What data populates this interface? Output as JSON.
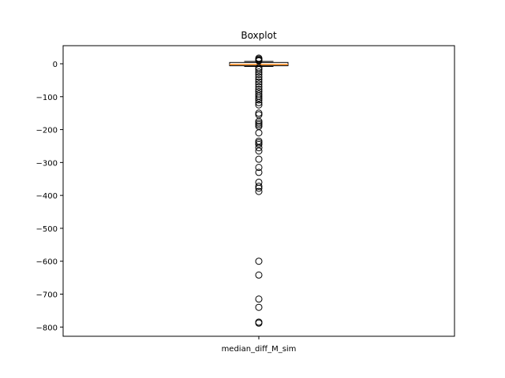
{
  "chart_data": {
    "type": "boxplot",
    "title": "Boxplot",
    "xlabel": "",
    "ylabel": "",
    "categories": [
      "median_diff_M_sim"
    ],
    "ylim": [
      -828,
      55
    ],
    "yticks": [
      0,
      -100,
      -200,
      -300,
      -400,
      -500,
      -600,
      -700,
      -800
    ],
    "ytick_labels": [
      "0",
      "−100",
      "−200",
      "−300",
      "−400",
      "−500",
      "−600",
      "−700",
      "−800"
    ],
    "box": {
      "q1": -6,
      "median": -2,
      "q3": 4,
      "whisker_low": -8,
      "whisker_high": 7
    },
    "outliers": [
      17,
      14,
      11,
      9,
      -12,
      -18,
      -25,
      -32,
      -40,
      -48,
      -55,
      -62,
      -70,
      -78,
      -85,
      -92,
      -98,
      -104,
      -110,
      -118,
      -125,
      -150,
      -155,
      -175,
      -180,
      -185,
      -190,
      -210,
      -235,
      -240,
      -245,
      -255,
      -265,
      -290,
      -315,
      -330,
      -360,
      -372,
      -378,
      -388,
      -600,
      -642,
      -715,
      -740,
      -785,
      -788
    ],
    "colors": {
      "box": "#000000",
      "median": "#ff7f0e",
      "outlier_edge": "#000000"
    }
  }
}
